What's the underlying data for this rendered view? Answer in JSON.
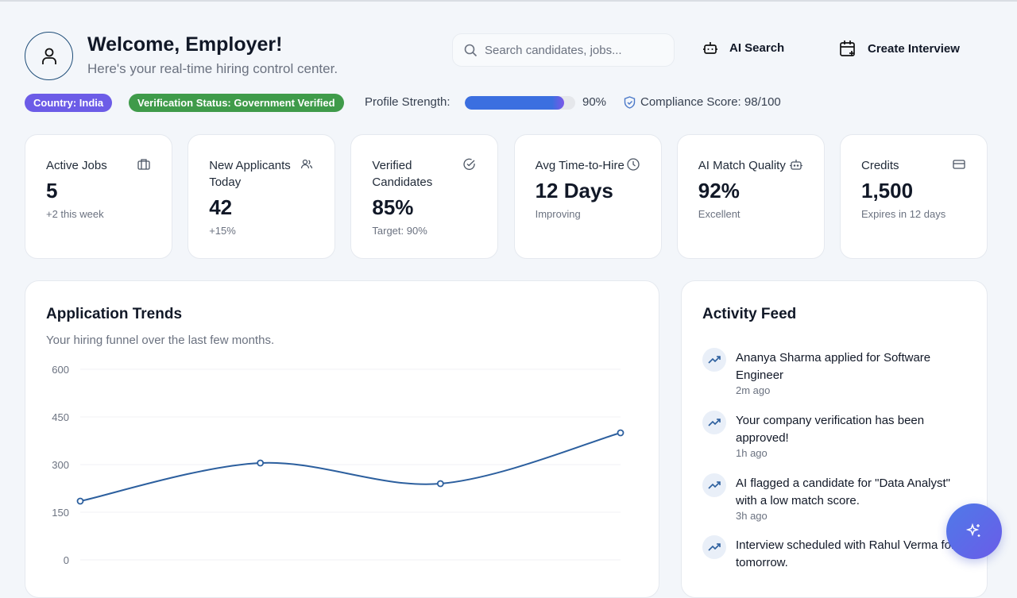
{
  "header": {
    "title": "Welcome, Employer!",
    "subtitle": "Here's your real-time hiring control center.",
    "search_placeholder": "Search candidates, jobs...",
    "ai_search": "AI Search",
    "create_interview": "Create Interview"
  },
  "status": {
    "country": "Country: India",
    "verification": "Verification Status: Government Verified",
    "profile_label": "Profile Strength:",
    "profile_value": "90%",
    "profile_percent": 90,
    "compliance": "Compliance Score: 98/100",
    "colors": {
      "country": "#6c5ce7",
      "verification": "#3f9b4a",
      "progress": "#3b6fe0"
    }
  },
  "stats": [
    {
      "label": "Active Jobs",
      "value": "5",
      "sub": "+2 this week",
      "icon": "briefcase-icon"
    },
    {
      "label": "New Applicants Today",
      "value": "42",
      "sub": "+15%",
      "icon": "users-icon"
    },
    {
      "label": "Verified Candidates",
      "value": "85%",
      "sub": "Target: 90%",
      "icon": "check-circle-icon"
    },
    {
      "label": "Avg Time-to-Hire",
      "value": "12 Days",
      "sub": "Improving",
      "icon": "clock-icon"
    },
    {
      "label": "AI Match Quality",
      "value": "92%",
      "sub": "Excellent",
      "icon": "bot-icon"
    },
    {
      "label": "Credits",
      "value": "1,500",
      "sub": "Expires in 12 days",
      "icon": "credit-card-icon"
    }
  ],
  "trends": {
    "title": "Application Trends",
    "subtitle": "Your hiring funnel over the last few months."
  },
  "chart_data": {
    "type": "line",
    "values": [
      185,
      305,
      240,
      400
    ],
    "ylim": [
      0,
      600
    ],
    "yticks": [
      "600",
      "450",
      "300",
      "150",
      "0"
    ],
    "grid": true,
    "color": "#2c5f9e"
  },
  "feed": {
    "title": "Activity Feed",
    "items": [
      {
        "text": "Ananya Sharma applied for Software Engineer",
        "time": "2m ago"
      },
      {
        "text": "Your company verification has been approved!",
        "time": "1h ago"
      },
      {
        "text": "AI flagged a candidate for \"Data Analyst\" with a low match score.",
        "time": "3h ago"
      },
      {
        "text": "Interview scheduled with Rahul Verma for tomorrow.",
        "time": ""
      }
    ]
  }
}
